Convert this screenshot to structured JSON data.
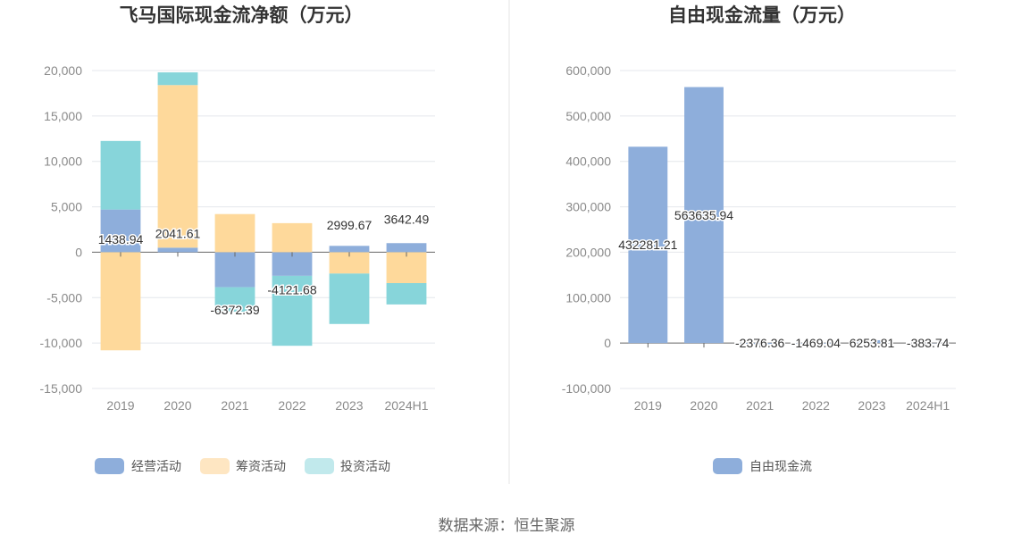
{
  "source_text": "数据来源：恒生聚源",
  "colors": {
    "operating": "#8eaedb",
    "financing": "#fed99b",
    "investing": "#87d5da",
    "free_cash_flow": "#8eaedb",
    "legend_operating": "#8eaedb",
    "legend_financing": "#fee6c2",
    "legend_investing": "#c1e9ec",
    "grid": "#e4e7ec",
    "axis": "#666666"
  },
  "chart_data": [
    {
      "type": "bar",
      "stacked": true,
      "title": "飞马国际现金流净额（万元）",
      "categories": [
        "2019",
        "2020",
        "2021",
        "2022",
        "2023",
        "2024H1"
      ],
      "ylim": [
        -15000,
        20000
      ],
      "yticks": [
        20000,
        15000,
        10000,
        5000,
        0,
        -5000,
        -10000,
        -15000
      ],
      "ytick_labels": [
        "20,000",
        "15,000",
        "10,000",
        "5,000",
        "0",
        "-5,000",
        "-10,000",
        "-15,000"
      ],
      "grid": true,
      "legend_position": "bottom",
      "series": [
        {
          "name": "经营活动",
          "key": "operating",
          "values": [
            4700,
            500,
            -3850,
            -2600,
            700,
            1000
          ]
        },
        {
          "name": "筹资活动",
          "key": "financing",
          "values": [
            -10800,
            17900,
            4200,
            3200,
            -2350,
            -3400
          ]
        },
        {
          "name": "投资活动",
          "key": "investing",
          "values": [
            7550,
            1400,
            -2700,
            -7700,
            -5550,
            -2350
          ]
        }
      ],
      "net_labels": [
        "1438.94",
        "2041.61",
        "-6372.39",
        "-4121.68",
        "2999.67",
        "3642.49"
      ],
      "net_values": [
        1438.94,
        2041.61,
        -6372.39,
        -4121.68,
        2999.67,
        3642.49
      ]
    },
    {
      "type": "bar",
      "title": "自由现金流量（万元）",
      "categories": [
        "2019",
        "2020",
        "2021",
        "2022",
        "2023",
        "2024H1"
      ],
      "ylim": [
        -100000,
        600000
      ],
      "yticks": [
        600000,
        500000,
        400000,
        300000,
        200000,
        100000,
        0,
        -100000
      ],
      "ytick_labels": [
        "600,000",
        "500,000",
        "400,000",
        "300,000",
        "200,000",
        "100,000",
        "0",
        "-100,000"
      ],
      "grid": true,
      "legend_position": "bottom",
      "series": [
        {
          "name": "自由现金流",
          "key": "free_cash_flow",
          "values": [
            432281.21,
            563635.94,
            -2376.36,
            -1469.04,
            6253.81,
            -383.74
          ]
        }
      ],
      "value_labels": [
        "432281.21",
        "563635.94",
        "-2376.36",
        "-1469.04",
        "6253.81",
        "-383.74"
      ]
    }
  ]
}
